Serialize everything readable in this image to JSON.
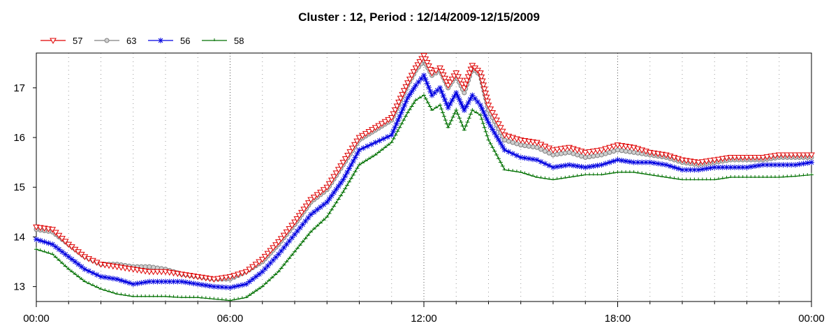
{
  "chart_data": {
    "type": "line",
    "title": "Cluster : 12, Period : 12/14/2009-12/15/2009",
    "xlabel": "",
    "ylabel": "",
    "x_unit": "hours",
    "xlim": [
      0,
      24
    ],
    "ylim": [
      12.7,
      17.7
    ],
    "x_ticks": [
      {
        "value": 0,
        "label": "00:00"
      },
      {
        "value": 6,
        "label": "06:00"
      },
      {
        "value": 12,
        "label": "12:00"
      },
      {
        "value": 18,
        "label": "18:00"
      },
      {
        "value": 24,
        "label": "00:00"
      }
    ],
    "y_ticks": [
      {
        "value": 13,
        "label": "13"
      },
      {
        "value": 14,
        "label": "14"
      },
      {
        "value": 15,
        "label": "15"
      },
      {
        "value": 16,
        "label": "16"
      },
      {
        "value": 17,
        "label": "17"
      }
    ],
    "grid": "dotted vertical lines",
    "legend_position": "top-left",
    "x": [
      0,
      0.5,
      1,
      1.5,
      2,
      2.5,
      3,
      3.5,
      4,
      4.5,
      5,
      5.5,
      6,
      6.5,
      7,
      7.5,
      8,
      8.5,
      9,
      9.5,
      10,
      10.5,
      11,
      11.5,
      11.75,
      12,
      12.25,
      12.5,
      12.75,
      13,
      13.25,
      13.5,
      13.75,
      14,
      14.5,
      15,
      15.5,
      16,
      16.5,
      17,
      17.5,
      18,
      18.5,
      19,
      19.5,
      20,
      20.5,
      21,
      21.5,
      22,
      22.5,
      23,
      23.5,
      24
    ],
    "series": [
      {
        "name": "57",
        "color": "#e00000",
        "marker": "triangle-down",
        "values": [
          14.2,
          14.15,
          13.85,
          13.6,
          13.45,
          13.4,
          13.35,
          13.3,
          13.3,
          13.25,
          13.2,
          13.15,
          13.2,
          13.3,
          13.55,
          13.9,
          14.3,
          14.75,
          15.0,
          15.5,
          16.0,
          16.2,
          16.4,
          17.1,
          17.4,
          17.65,
          17.3,
          17.4,
          17.05,
          17.3,
          17.0,
          17.45,
          17.3,
          16.65,
          16.05,
          15.95,
          15.9,
          15.75,
          15.8,
          15.7,
          15.75,
          15.85,
          15.8,
          15.7,
          15.65,
          15.55,
          15.5,
          15.55,
          15.6,
          15.6,
          15.6,
          15.65,
          15.65,
          15.65
        ]
      },
      {
        "name": "63",
        "color": "#808080",
        "marker": "circle",
        "values": [
          14.15,
          14.1,
          13.85,
          13.6,
          13.45,
          13.45,
          13.4,
          13.4,
          13.35,
          13.25,
          13.2,
          13.15,
          13.15,
          13.3,
          13.5,
          13.85,
          14.25,
          14.7,
          14.95,
          15.45,
          15.95,
          16.15,
          16.35,
          17.05,
          17.35,
          17.55,
          17.25,
          17.35,
          17.0,
          17.25,
          16.9,
          17.4,
          17.25,
          16.55,
          15.95,
          15.85,
          15.8,
          15.65,
          15.7,
          15.6,
          15.65,
          15.75,
          15.7,
          15.65,
          15.6,
          15.5,
          15.45,
          15.5,
          15.55,
          15.55,
          15.55,
          15.6,
          15.6,
          15.6
        ]
      },
      {
        "name": "56",
        "color": "#0000e0",
        "marker": "asterisk",
        "values": [
          13.95,
          13.85,
          13.6,
          13.35,
          13.2,
          13.15,
          13.05,
          13.1,
          13.1,
          13.1,
          13.05,
          13.0,
          12.98,
          13.05,
          13.3,
          13.65,
          14.05,
          14.45,
          14.7,
          15.15,
          15.75,
          15.9,
          16.05,
          16.8,
          17.05,
          17.25,
          16.85,
          17.0,
          16.6,
          16.9,
          16.55,
          16.85,
          16.65,
          16.3,
          15.75,
          15.6,
          15.55,
          15.4,
          15.45,
          15.4,
          15.45,
          15.55,
          15.5,
          15.5,
          15.45,
          15.35,
          15.35,
          15.4,
          15.4,
          15.4,
          15.45,
          15.45,
          15.45,
          15.5
        ]
      },
      {
        "name": "58",
        "color": "#007000",
        "marker": "tick",
        "values": [
          13.75,
          13.65,
          13.35,
          13.1,
          12.95,
          12.85,
          12.8,
          12.8,
          12.8,
          12.78,
          12.78,
          12.75,
          12.72,
          12.78,
          13.0,
          13.3,
          13.7,
          14.1,
          14.4,
          14.9,
          15.45,
          15.65,
          15.9,
          16.5,
          16.75,
          16.85,
          16.55,
          16.65,
          16.2,
          16.55,
          16.15,
          16.55,
          16.45,
          15.95,
          15.35,
          15.3,
          15.2,
          15.15,
          15.2,
          15.25,
          15.25,
          15.3,
          15.3,
          15.25,
          15.2,
          15.15,
          15.15,
          15.15,
          15.2,
          15.2,
          15.2,
          15.2,
          15.22,
          15.25
        ]
      }
    ]
  }
}
